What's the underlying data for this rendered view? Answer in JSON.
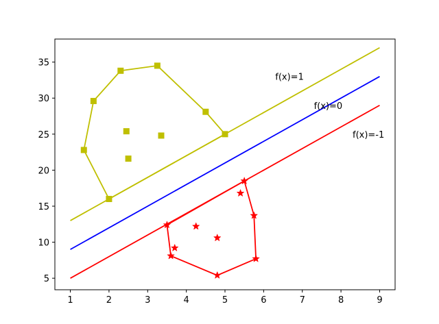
{
  "chart_data": {
    "type": "scatter",
    "title": "",
    "xlabel": "",
    "ylabel": "",
    "xlim": [
      0.6,
      9.4
    ],
    "ylim": [
      3.4,
      38.2
    ],
    "xticks": [
      1,
      2,
      3,
      4,
      5,
      6,
      7,
      8,
      9
    ],
    "yticks": [
      5,
      10,
      15,
      20,
      25,
      30,
      35
    ],
    "grid": false,
    "legend": "none",
    "lines": [
      {
        "label": "f(x)=1",
        "color": "#bfbf00",
        "points": [
          [
            1,
            13
          ],
          [
            9,
            37
          ]
        ]
      },
      {
        "label": "f(x)=0",
        "color": "#0000ff",
        "points": [
          [
            1,
            9
          ],
          [
            9,
            33
          ]
        ]
      },
      {
        "label": "f(x)=-1",
        "color": "#ff0000",
        "points": [
          [
            1,
            5
          ],
          [
            9,
            29
          ]
        ]
      }
    ],
    "annotations": [
      {
        "text": "f(x)=1",
        "x": 6.3,
        "y": 33
      },
      {
        "text": "f(x)=0",
        "x": 7.3,
        "y": 29
      },
      {
        "text": "f(x)=-1",
        "x": 8.3,
        "y": 25
      }
    ],
    "series": [
      {
        "color": "#bfbf00",
        "marker": "square",
        "points": [
          [
            1.35,
            22.8
          ],
          [
            1.6,
            29.6
          ],
          [
            2.3,
            33.8
          ],
          [
            3.25,
            34.5
          ],
          [
            4.5,
            28.1
          ],
          [
            5.0,
            25.0
          ],
          [
            2.0,
            16.0
          ],
          [
            2.45,
            25.4
          ],
          [
            3.35,
            24.8
          ],
          [
            2.5,
            21.6
          ]
        ],
        "hull": [
          [
            2.0,
            16.0
          ],
          [
            1.35,
            22.8
          ],
          [
            1.6,
            29.6
          ],
          [
            2.3,
            33.8
          ],
          [
            3.25,
            34.5
          ],
          [
            4.5,
            28.1
          ],
          [
            5.0,
            25.0
          ]
        ]
      },
      {
        "color": "#ff0000",
        "marker": "star",
        "points": [
          [
            3.5,
            12.4
          ],
          [
            3.6,
            8.1
          ],
          [
            3.7,
            9.2
          ],
          [
            4.25,
            12.2
          ],
          [
            4.8,
            5.4
          ],
          [
            4.8,
            10.6
          ],
          [
            5.4,
            16.8
          ],
          [
            5.5,
            18.5
          ],
          [
            5.75,
            13.7
          ],
          [
            5.8,
            7.7
          ]
        ],
        "hull": [
          [
            3.5,
            12.4
          ],
          [
            3.6,
            8.1
          ],
          [
            4.8,
            5.4
          ],
          [
            5.8,
            7.7
          ],
          [
            5.75,
            13.7
          ],
          [
            5.5,
            18.5
          ]
        ]
      }
    ]
  }
}
